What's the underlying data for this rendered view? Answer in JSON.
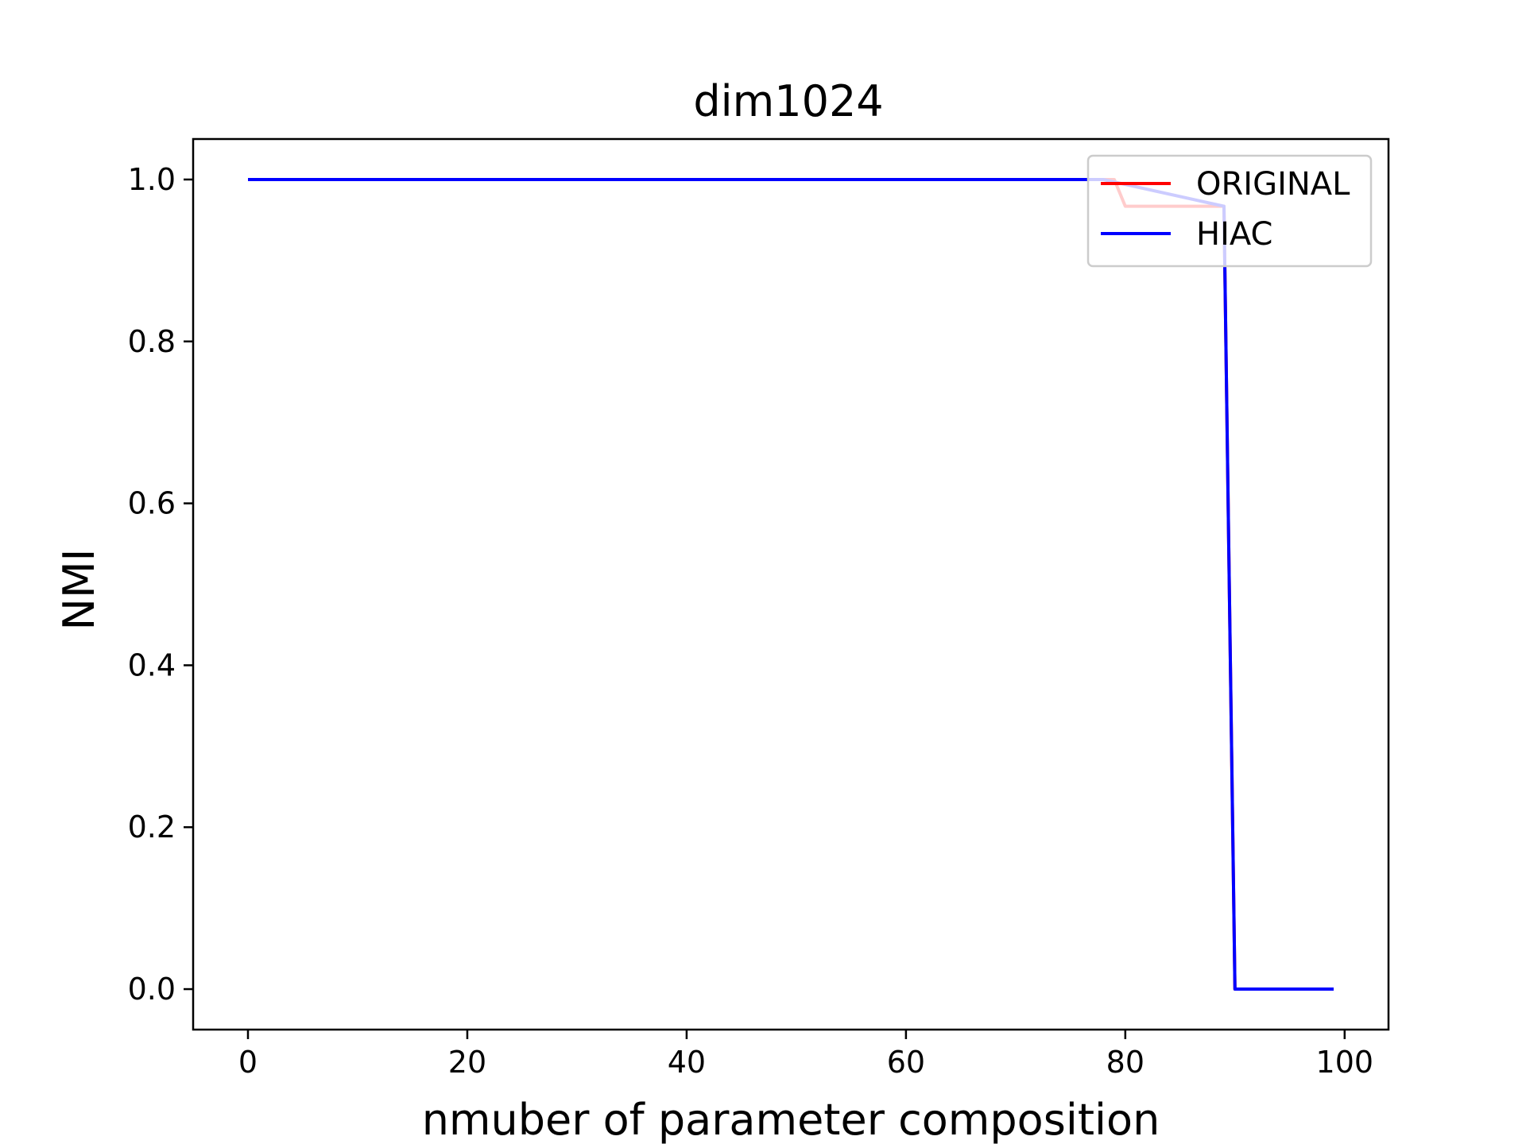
{
  "chart_data": {
    "type": "line",
    "title": "dim1024",
    "xlabel": "nmuber of parameter composition",
    "ylabel": "NMI",
    "xlim": [
      -5,
      104
    ],
    "ylim": [
      -0.05,
      1.05
    ],
    "xticks": [
      0,
      20,
      40,
      60,
      80,
      100
    ],
    "xtick_labels": [
      "0",
      "20",
      "40",
      "60",
      "80",
      "100"
    ],
    "yticks": [
      0.0,
      0.2,
      0.4,
      0.6,
      0.8,
      1.0
    ],
    "ytick_labels": [
      "0.0",
      "0.2",
      "0.4",
      "0.6",
      "0.8",
      "1.0"
    ],
    "grid": false,
    "legend_position": "upper right",
    "series": [
      {
        "name": "ORIGINAL",
        "color": "#ff0000",
        "x": [
          0,
          79,
          80,
          89,
          90,
          99
        ],
        "y": [
          1.0,
          1.0,
          0.967,
          0.967,
          0.0,
          0.0
        ]
      },
      {
        "name": "HIAC",
        "color": "#0000ff",
        "x": [
          0,
          77,
          78,
          89,
          90,
          99
        ],
        "y": [
          1.0,
          1.0,
          1.0,
          0.967,
          0.0,
          0.0
        ]
      }
    ]
  }
}
